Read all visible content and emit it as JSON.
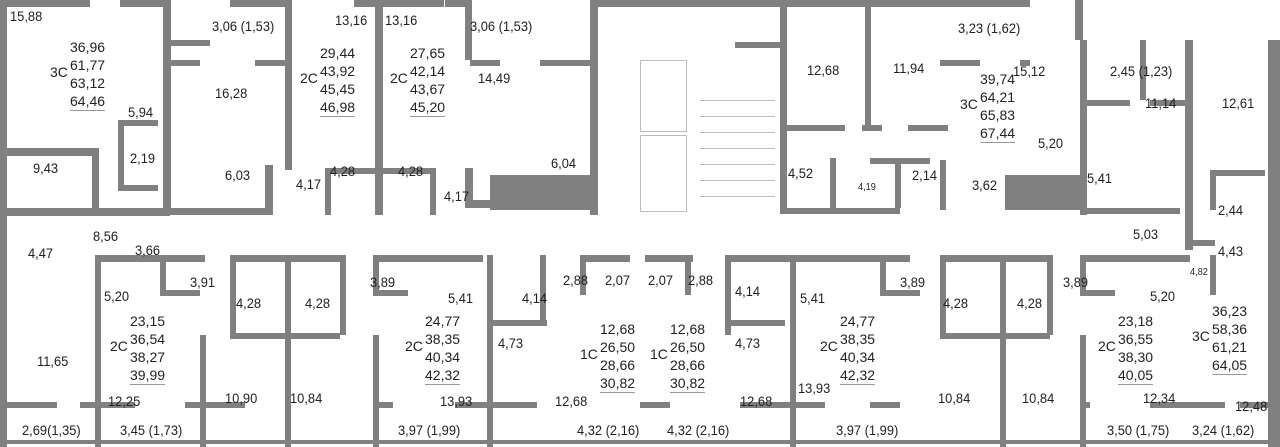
{
  "plan": {
    "wall_color": "#808080",
    "rooms_top": [
      "15,88",
      "5,94",
      "9,43",
      "2,19",
      "3,06 (1,53)",
      "16,28",
      "6,03",
      "13,16",
      "4,17",
      "4,28",
      "13,16",
      "4,28",
      "4,17",
      "3,06 (1,53)",
      "14,49",
      "6,04",
      "12,68",
      "11,94",
      "3,23 (1,62)",
      "15,12",
      "5,20",
      "4,52",
      "4,19",
      "2,14",
      "3,62",
      "5,41",
      "2,45 (1,23)",
      "11,14",
      "12,61",
      "2,44",
      "4,43",
      "4,82",
      "5,03"
    ],
    "rooms_bottom": [
      "4,47",
      "8,56",
      "3,66",
      "5,20",
      "3,91",
      "11,65",
      "12,25",
      "2,69(1,35)",
      "3,45 (1,73)",
      "4,28",
      "4,28",
      "10,90",
      "10,84",
      "3,89",
      "5,41",
      "13,93",
      "3,97 (1,99)",
      "4,14",
      "4,73",
      "2,88",
      "2,07",
      "12,68",
      "4,32 (2,16)",
      "2,07",
      "2,88",
      "4,14",
      "4,73",
      "12,68",
      "4,32 (2,16)",
      "5,41",
      "13,93",
      "3,97 (1,99)",
      "3,89",
      "4,28",
      "4,28",
      "10,84",
      "10,84",
      "3,89",
      "5,20",
      "12,34",
      "3,50 (1,75)",
      "12,48",
      "3,24 (1,62)"
    ],
    "apartments": [
      {
        "type": "3С",
        "areas": [
          "36,96",
          "61,77",
          "63,12",
          "64,46"
        ]
      },
      {
        "type": "2С",
        "areas": [
          "29,44",
          "43,92",
          "45,45",
          "46,98"
        ]
      },
      {
        "type": "2С",
        "areas": [
          "27,65",
          "42,14",
          "43,67",
          "45,20"
        ]
      },
      {
        "type": "3С",
        "areas": [
          "39,74",
          "64,21",
          "65,83",
          "67,44"
        ]
      },
      {
        "type": "2С",
        "areas": [
          "23,15",
          "36,54",
          "38,27",
          "39,99"
        ]
      },
      {
        "type": "2С",
        "areas": [
          "24,77",
          "38,35",
          "40,34",
          "42,32"
        ]
      },
      {
        "type": "1С",
        "areas": [
          "12,68",
          "26,50",
          "28,66",
          "30,82"
        ]
      },
      {
        "type": "1С",
        "areas": [
          "12,68",
          "26,50",
          "28,66",
          "30,82"
        ]
      },
      {
        "type": "2С",
        "areas": [
          "24,77",
          "38,35",
          "40,34",
          "42,32"
        ]
      },
      {
        "type": "2С",
        "areas": [
          "23,18",
          "36,55",
          "38,30",
          "40,05"
        ]
      },
      {
        "type": "3С",
        "areas": [
          "36,23",
          "58,36",
          "61,21",
          "64,05"
        ]
      }
    ]
  }
}
